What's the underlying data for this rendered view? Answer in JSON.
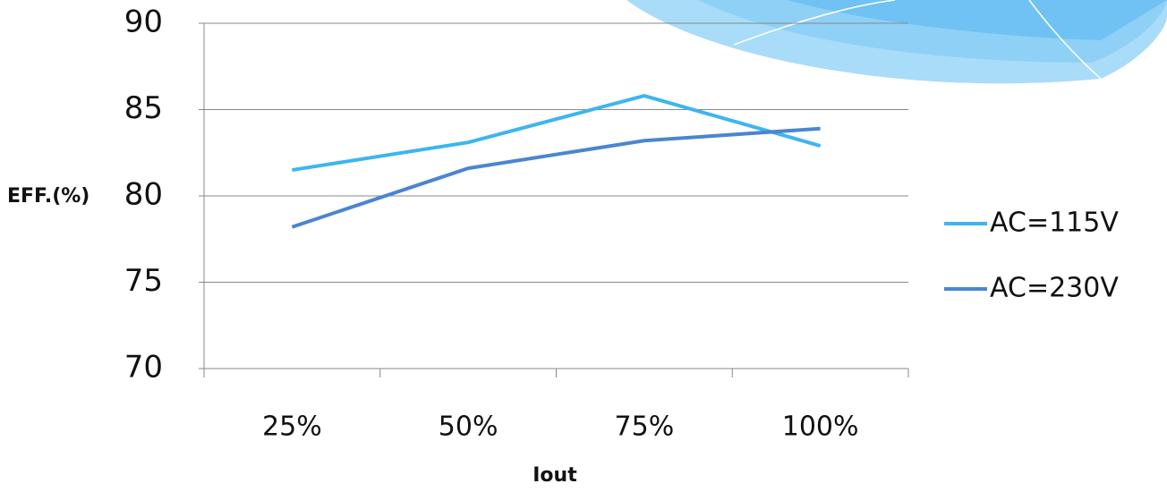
{
  "chart_data": {
    "type": "line",
    "y_label": "EFF.(%)",
    "x_label": "Iout",
    "categories": [
      "25%",
      "50%",
      "75%",
      "100%"
    ],
    "series": [
      {
        "name": "AC=115V",
        "color": "#3db5f0",
        "values": [
          81.5,
          83.1,
          85.8,
          82.9
        ]
      },
      {
        "name": "AC=230V",
        "color": "#4a86cf",
        "values": [
          78.2,
          81.6,
          83.2,
          83.9
        ]
      }
    ],
    "ylim": [
      70,
      90
    ],
    "yticks": [
      70,
      75,
      80,
      85,
      90
    ],
    "grid": true,
    "legend": "right"
  }
}
